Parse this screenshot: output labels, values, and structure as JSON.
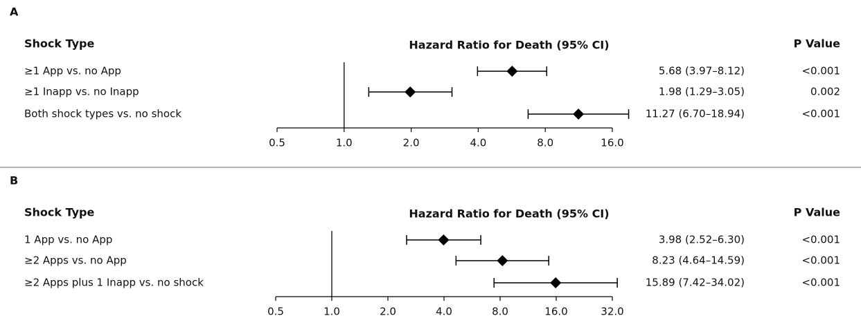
{
  "chart_data": [
    {
      "type": "forest",
      "panel": "A",
      "row_header": "Shock Type",
      "xlabel": "Hazard Ratio for Death (95% CI)",
      "p_header": "P Value",
      "log_x": true,
      "xlim": [
        0.5,
        16
      ],
      "reference_line": 1,
      "xticks": [
        0.5,
        {
          "value": 1,
          "label": "1.0"
        },
        {
          "value": 2,
          "label": "2.0"
        },
        {
          "value": 4,
          "label": "4.0"
        },
        {
          "value": 8,
          "label": "8.0"
        },
        {
          "value": 16,
          "label": "16.0"
        }
      ],
      "categories": [
        "≥1 App vs. no App",
        "≥1 Inapp vs. no Inapp",
        "Both shock types vs. no shock"
      ],
      "values": [
        5.68,
        1.98,
        11.27
      ],
      "lower": [
        3.97,
        1.29,
        6.7
      ],
      "upper": [
        8.12,
        3.05,
        18.94
      ],
      "value_labels": [
        "5.68 (3.97–8.12)",
        "1.98 (1.29–3.05)",
        "11.27 (6.70–18.94)"
      ],
      "p_values": [
        "<0.001",
        "0.002",
        "<0.001"
      ],
      "color": "#000000"
    },
    {
      "type": "forest",
      "panel": "B",
      "row_header": "Shock Type",
      "xlabel": "Hazard Ratio for Death (95% CI)",
      "p_header": "P Value",
      "log_x": true,
      "xlim": [
        0.5,
        32
      ],
      "reference_line": 1,
      "xticks": [
        0.5,
        {
          "value": 1,
          "label": "1.0"
        },
        {
          "value": 2,
          "label": "2.0"
        },
        {
          "value": 4,
          "label": "4.0"
        },
        {
          "value": 8,
          "label": "8.0"
        },
        {
          "value": 16,
          "label": "16.0"
        },
        {
          "value": 32,
          "label": "32.0"
        }
      ],
      "categories": [
        "1 App vs. no App",
        "≥2 Apps vs. no App",
        "≥2 Apps plus 1 Inapp vs. no shock"
      ],
      "values": [
        3.98,
        8.23,
        15.89
      ],
      "lower": [
        2.52,
        4.64,
        7.42
      ],
      "upper": [
        6.3,
        14.59,
        34.02
      ],
      "value_labels": [
        "3.98 (2.52–6.30)",
        "8.23 (4.64–14.59)",
        "15.89 (7.42–34.02)"
      ],
      "p_values": [
        "<0.001",
        "<0.001",
        "<0.001"
      ],
      "color": "#000000"
    }
  ]
}
